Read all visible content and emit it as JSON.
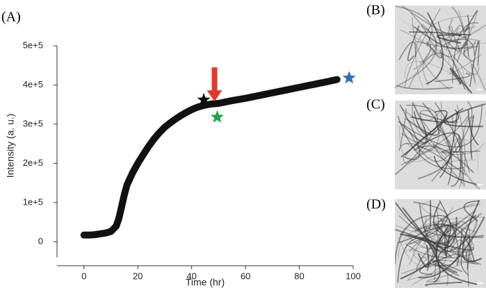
{
  "chart_data": {
    "type": "line",
    "panel_labels": [
      "(A)",
      "(B)",
      "(C)",
      "(D)"
    ],
    "xlabel": "Time (hr)",
    "ylabel": "Intensity (a. u.)",
    "color": "#111111",
    "x": [
      0,
      2,
      4,
      6,
      8,
      10,
      12,
      13,
      14,
      15,
      16,
      18,
      20,
      22,
      24,
      26,
      28,
      30,
      32,
      34,
      36,
      38,
      40,
      42,
      44,
      46,
      48,
      50,
      55,
      60,
      65,
      70,
      75,
      80,
      85,
      90,
      94
    ],
    "values": [
      17000,
      17000,
      18000,
      20000,
      22000,
      26000,
      40000,
      60000,
      90000,
      120000,
      145000,
      175000,
      200000,
      222000,
      243000,
      262000,
      278000,
      292000,
      303000,
      313000,
      322000,
      330000,
      337000,
      343000,
      347000,
      350000,
      352000,
      353000,
      360000,
      366000,
      373000,
      380000,
      387000,
      394000,
      401000,
      408000,
      414000
    ],
    "xlim": [
      -10,
      100
    ],
    "xticks": [
      0,
      20,
      40,
      60,
      80,
      100
    ],
    "ylim": [
      -40000,
      500000
    ],
    "yticks": [
      0,
      {
        "value": 100000,
        "label": "1e+5"
      },
      {
        "value": 200000,
        "label": "2e+5"
      },
      {
        "value": 300000,
        "label": "3e+5"
      },
      {
        "value": 400000,
        "label": "4e+5"
      },
      {
        "value": 500000,
        "label": "5e+5"
      }
    ],
    "stars": [
      {
        "x": 44.5,
        "y": 362000,
        "color": "#111111"
      },
      {
        "x": 49.5,
        "y": 318000,
        "color": "#1fa54a"
      },
      {
        "x": 98.5,
        "y": 418000,
        "color": "#2f6db5"
      }
    ],
    "arrow": {
      "x": 48.5,
      "y_from": 445000,
      "y_to": 358000,
      "color": "#e03a2f"
    }
  }
}
